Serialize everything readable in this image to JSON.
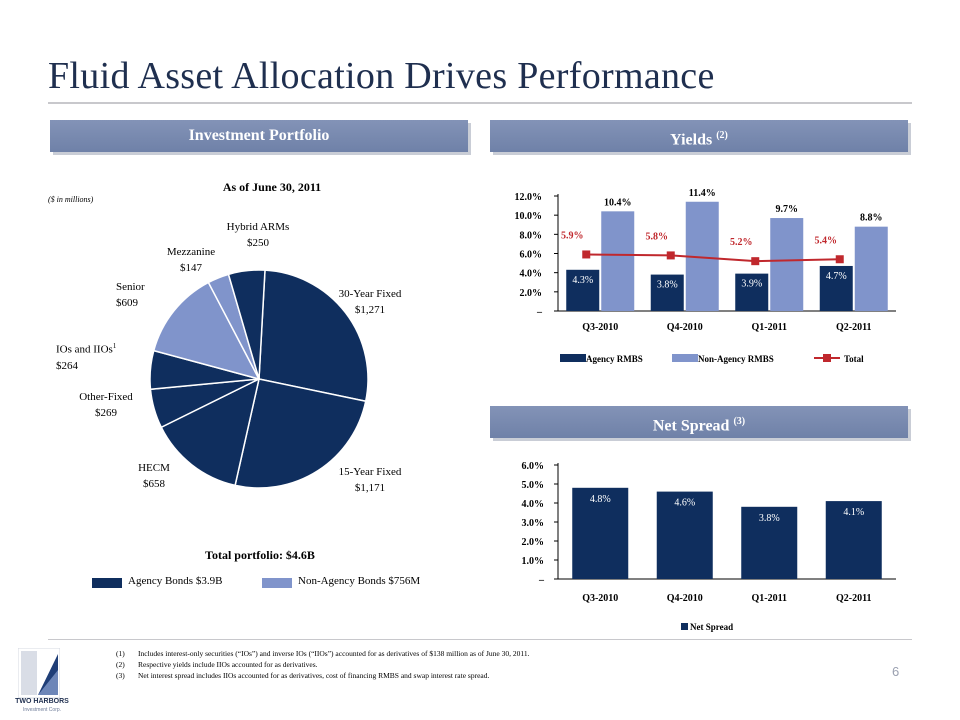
{
  "header": {
    "title": "Fluid Asset Allocation Drives Performance"
  },
  "sections": {
    "portfolio": "Investment Portfolio",
    "yields": "Yields",
    "yields_note": "(2)",
    "spread": "Net Spread",
    "spread_note": "(3)"
  },
  "portfolio": {
    "as_of": "As of June 30, 2011",
    "units": "($ in millions)",
    "total": "Total portfolio: $4.6B",
    "legend_agency": "Agency Bonds $3.9B",
    "legend_nonagency": "Non-Agency Bonds $756M"
  },
  "colors": {
    "agency": "#0f2e5e",
    "nonagency": "#8094cb",
    "total_line": "#c0282d",
    "header_bg": "#7889ad"
  },
  "chart_data": [
    {
      "type": "pie",
      "title": "As of June 30, 2011",
      "slices": [
        {
          "name": "30-Year Fixed",
          "value": 1271,
          "label": "$1,271",
          "group": "agency"
        },
        {
          "name": "15-Year Fixed",
          "value": 1171,
          "label": "$1,171",
          "group": "agency"
        },
        {
          "name": "HECM",
          "value": 658,
          "label": "$658",
          "group": "agency"
        },
        {
          "name": "Other-Fixed",
          "value": 269,
          "label": "$269",
          "group": "agency"
        },
        {
          "name": "IOs and IIOs",
          "name_sup": "1",
          "value": 264,
          "label": "$264",
          "group": "agency"
        },
        {
          "name": "Senior",
          "value": 609,
          "label": "$609",
          "group": "nonagency"
        },
        {
          "name": "Mezzanine",
          "value": 147,
          "label": "$147",
          "group": "nonagency"
        },
        {
          "name": "Hybrid ARMs",
          "value": 250,
          "label": "$250",
          "group": "agency"
        }
      ]
    },
    {
      "type": "bar",
      "categories": [
        "Q3-2010",
        "Q4-2010",
        "Q1-2011",
        "Q2-2011"
      ],
      "series": [
        {
          "name": "Agency RMBS",
          "kind": "bar",
          "values": [
            4.3,
            3.8,
            3.9,
            4.7
          ],
          "labels": [
            "4.3%",
            "3.8%",
            "3.9%",
            "4.7%"
          ]
        },
        {
          "name": "Non-Agency RMBS",
          "kind": "bar",
          "values": [
            10.4,
            11.4,
            9.7,
            8.8
          ],
          "labels": [
            "10.4%",
            "11.4%",
            "9.7%",
            "8.8%"
          ]
        },
        {
          "name": "Total",
          "kind": "line",
          "values": [
            5.9,
            5.8,
            5.2,
            5.4
          ],
          "labels": [
            "5.9%",
            "5.8%",
            "5.2%",
            "5.4%"
          ]
        }
      ],
      "yticks": [
        "–",
        "2.0%",
        "4.0%",
        "6.0%",
        "8.0%",
        "10.0%",
        "12.0%"
      ],
      "ylim": [
        0,
        12
      ]
    },
    {
      "type": "bar",
      "categories": [
        "Q3-2010",
        "Q4-2010",
        "Q1-2011",
        "Q2-2011"
      ],
      "series": [
        {
          "name": "Net Spread",
          "values": [
            4.8,
            4.6,
            3.8,
            4.1
          ],
          "labels": [
            "4.8%",
            "4.6%",
            "3.8%",
            "4.1%"
          ]
        }
      ],
      "yticks": [
        "–",
        "1.0%",
        "2.0%",
        "3.0%",
        "4.0%",
        "5.0%",
        "6.0%"
      ],
      "ylim": [
        0,
        6
      ]
    }
  ],
  "footnotes": [
    {
      "num": "(1)",
      "text": "Includes interest-only securities (“IOs”) and inverse IOs (“IIOs”) accounted for as derivatives of $138 million as of June 30, 2011."
    },
    {
      "num": "(2)",
      "text": "Respective yields include IIOs accounted for as derivatives."
    },
    {
      "num": "(3)",
      "text": "Net interest spread includes IIOs accounted for as derivatives, cost of financing RMBS and swap interest rate spread."
    }
  ],
  "footer": {
    "page_number": "6",
    "logo_name": "TWO HARBORS",
    "logo_sub": "Investment Corp."
  }
}
